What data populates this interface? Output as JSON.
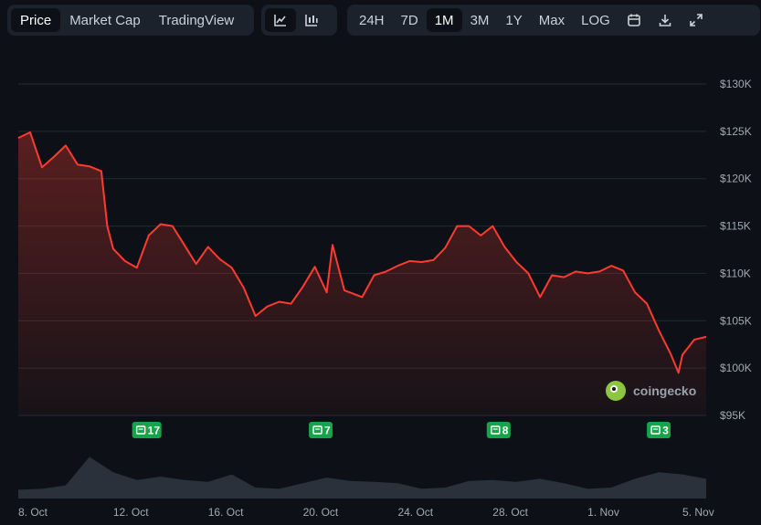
{
  "toolbar": {
    "view_tabs": [
      {
        "label": "Price",
        "active": true
      },
      {
        "label": "Market Cap",
        "active": false
      },
      {
        "label": "TradingView",
        "active": false
      }
    ],
    "chart_types": [
      {
        "icon": "line-chart-icon",
        "active": true
      },
      {
        "icon": "candlestick-chart-icon",
        "active": false
      }
    ],
    "ranges": [
      {
        "label": "24H",
        "active": false
      },
      {
        "label": "7D",
        "active": false
      },
      {
        "label": "1M",
        "active": true
      },
      {
        "label": "3M",
        "active": false
      },
      {
        "label": "1Y",
        "active": false
      },
      {
        "label": "Max",
        "active": false
      },
      {
        "label": "LOG",
        "active": false
      }
    ],
    "tools": [
      "calendar-icon",
      "download-icon",
      "expand-icon"
    ]
  },
  "watermark": {
    "text": "coingecko"
  },
  "colors": {
    "line": "#ff3b30",
    "badge": "#16a34a",
    "background": "#0d1117"
  },
  "chart_data": {
    "type": "area",
    "y_tick_labels": [
      "$130K",
      "$125K",
      "$120K",
      "$115K",
      "$110K",
      "$105K",
      "$100K",
      "$95K"
    ],
    "y_ticks": [
      130000,
      125000,
      120000,
      115000,
      110000,
      105000,
      100000,
      95000
    ],
    "ylim": [
      95000,
      130000
    ],
    "x_tick_labels": [
      "8. Oct",
      "12. Oct",
      "16. Oct",
      "20. Oct",
      "24. Oct",
      "28. Oct",
      "1. Nov",
      "5. Nov"
    ],
    "x_ticks": [
      "2025-10-08",
      "2025-10-12",
      "2025-10-16",
      "2025-10-20",
      "2025-10-24",
      "2025-10-28",
      "2025-11-01",
      "2025-11-05"
    ],
    "xlim": [
      "2025-10-08",
      "2025-11-06"
    ],
    "series": [
      {
        "points": [
          [
            "2025-10-08T00:00",
            124300
          ],
          [
            "2025-10-08T12:00",
            124900
          ],
          [
            "2025-10-09T00:00",
            121200
          ],
          [
            "2025-10-09T12:00",
            122300
          ],
          [
            "2025-10-10T00:00",
            123500
          ],
          [
            "2025-10-10T12:00",
            121500
          ],
          [
            "2025-10-11T00:00",
            121300
          ],
          [
            "2025-10-11T12:00",
            120800
          ],
          [
            "2025-10-11T18:00",
            115000
          ],
          [
            "2025-10-12T00:00",
            112600
          ],
          [
            "2025-10-12T12:00",
            111300
          ],
          [
            "2025-10-13T00:00",
            110600
          ],
          [
            "2025-10-13T12:00",
            114000
          ],
          [
            "2025-10-14T00:00",
            115200
          ],
          [
            "2025-10-14T12:00",
            115000
          ],
          [
            "2025-10-15T00:00",
            113000
          ],
          [
            "2025-10-15T12:00",
            111000
          ],
          [
            "2025-10-16T00:00",
            112800
          ],
          [
            "2025-10-16T12:00",
            111500
          ],
          [
            "2025-10-17T00:00",
            110600
          ],
          [
            "2025-10-17T12:00",
            108500
          ],
          [
            "2025-10-18T00:00",
            105500
          ],
          [
            "2025-10-18T12:00",
            106500
          ],
          [
            "2025-10-19T00:00",
            107000
          ],
          [
            "2025-10-19T12:00",
            106800
          ],
          [
            "2025-10-20T00:00",
            108600
          ],
          [
            "2025-10-20T12:00",
            110700
          ],
          [
            "2025-10-21T00:00",
            108000
          ],
          [
            "2025-10-21T06:00",
            113000
          ],
          [
            "2025-10-21T18:00",
            108200
          ],
          [
            "2025-10-22T12:00",
            107500
          ],
          [
            "2025-10-23T00:00",
            109800
          ],
          [
            "2025-10-23T12:00",
            110200
          ],
          [
            "2025-10-24T00:00",
            110800
          ],
          [
            "2025-10-24T12:00",
            111300
          ],
          [
            "2025-10-25T00:00",
            111200
          ],
          [
            "2025-10-25T12:00",
            111400
          ],
          [
            "2025-10-26T00:00",
            112700
          ],
          [
            "2025-10-26T12:00",
            115000
          ],
          [
            "2025-10-27T00:00",
            115000
          ],
          [
            "2025-10-27T12:00",
            114000
          ],
          [
            "2025-10-28T00:00",
            115000
          ],
          [
            "2025-10-28T12:00",
            112800
          ],
          [
            "2025-10-29T00:00",
            111200
          ],
          [
            "2025-10-29T12:00",
            110000
          ],
          [
            "2025-10-30T00:00",
            107500
          ],
          [
            "2025-10-30T12:00",
            109800
          ],
          [
            "2025-10-31T00:00",
            109600
          ],
          [
            "2025-10-31T12:00",
            110200
          ],
          [
            "2025-11-01T00:00",
            110000
          ],
          [
            "2025-11-01T12:00",
            110200
          ],
          [
            "2025-11-02T00:00",
            110800
          ],
          [
            "2025-11-02T12:00",
            110300
          ],
          [
            "2025-11-03T00:00",
            108000
          ],
          [
            "2025-11-03T12:00",
            106800
          ],
          [
            "2025-11-04T00:00",
            104000
          ],
          [
            "2025-11-04T12:00",
            101500
          ],
          [
            "2025-11-04T20:00",
            99500
          ],
          [
            "2025-11-05T00:00",
            101400
          ],
          [
            "2025-11-05T12:00",
            103000
          ],
          [
            "2025-11-06T00:00",
            103300
          ]
        ]
      }
    ],
    "volume": {
      "points": [
        [
          "2025-10-08",
          0.2
        ],
        [
          "2025-10-09",
          0.22
        ],
        [
          "2025-10-10",
          0.3
        ],
        [
          "2025-10-11",
          0.95
        ],
        [
          "2025-10-12",
          0.6
        ],
        [
          "2025-10-13",
          0.42
        ],
        [
          "2025-10-14",
          0.5
        ],
        [
          "2025-10-15",
          0.42
        ],
        [
          "2025-10-16",
          0.38
        ],
        [
          "2025-10-17",
          0.55
        ],
        [
          "2025-10-18",
          0.25
        ],
        [
          "2025-10-19",
          0.22
        ],
        [
          "2025-10-20",
          0.35
        ],
        [
          "2025-10-21",
          0.48
        ],
        [
          "2025-10-22",
          0.4
        ],
        [
          "2025-10-23",
          0.38
        ],
        [
          "2025-10-24",
          0.35
        ],
        [
          "2025-10-25",
          0.22
        ],
        [
          "2025-10-26",
          0.25
        ],
        [
          "2025-10-27",
          0.4
        ],
        [
          "2025-10-28",
          0.42
        ],
        [
          "2025-10-29",
          0.38
        ],
        [
          "2025-10-30",
          0.45
        ],
        [
          "2025-10-31",
          0.35
        ],
        [
          "2025-11-01",
          0.22
        ],
        [
          "2025-11-02",
          0.25
        ],
        [
          "2025-11-03",
          0.45
        ],
        [
          "2025-11-04",
          0.6
        ],
        [
          "2025-11-05",
          0.55
        ],
        [
          "2025-11-06",
          0.45
        ]
      ]
    },
    "news_markers": [
      {
        "date": "2025-10-13T10:00",
        "count": "17"
      },
      {
        "date": "2025-10-20T18:00",
        "count": "7"
      },
      {
        "date": "2025-10-28T06:00",
        "count": "8"
      },
      {
        "date": "2025-11-04T00:00",
        "count": "3"
      }
    ]
  }
}
